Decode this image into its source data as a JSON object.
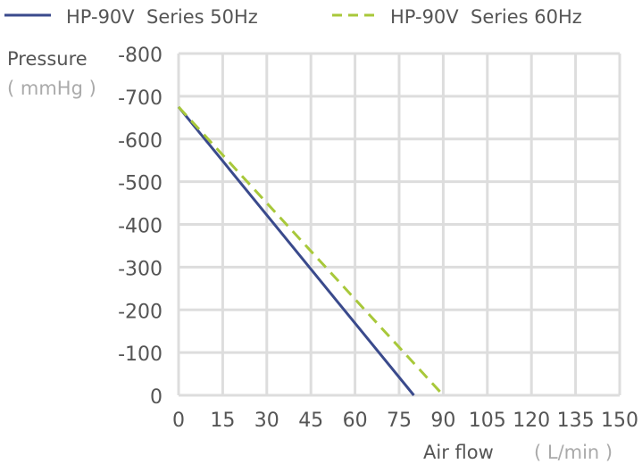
{
  "chart_data": {
    "type": "line",
    "xlabel": "Air flow",
    "xunit": "( L/min )",
    "ylabel": "Pressure",
    "yunit": "( mmHg )",
    "xlim": [
      0,
      150
    ],
    "ylim": [
      0,
      -800
    ],
    "xticks": [
      "0",
      "15",
      "30",
      "45",
      "60",
      "75",
      "90",
      "105",
      "120",
      "135",
      "150"
    ],
    "yticks": [
      "0",
      "-100",
      "-200",
      "-300",
      "-400",
      "-500",
      "-600",
      "-700",
      "-800"
    ],
    "grid": true,
    "legend_position": "top",
    "series": [
      {
        "name": "HP-90V  Series 50Hz",
        "color": "#3a4a8c",
        "dash": "solid",
        "x": [
          0,
          80
        ],
        "y": [
          -675,
          0
        ]
      },
      {
        "name": "HP-90V  Series 60Hz",
        "color": "#a8c83a",
        "dash": "dashed",
        "x": [
          0,
          90
        ],
        "y": [
          -675,
          0
        ]
      }
    ]
  }
}
